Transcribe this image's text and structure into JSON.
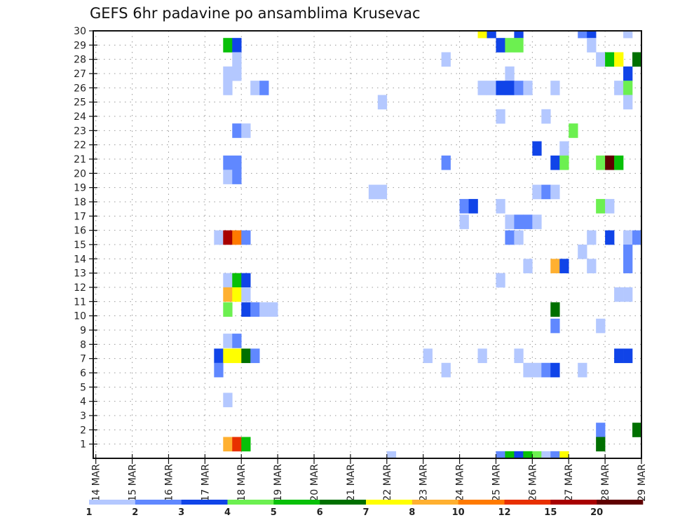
{
  "chart_data": {
    "type": "heatmap",
    "title": "GEFS 6hr padavine po ansamblima Krusevac",
    "xlabel": "",
    "ylabel": "",
    "x_start_day": 14,
    "x_end_day": 29,
    "x_step_hours": 6,
    "ylim": [
      0,
      30
    ],
    "grid": true,
    "ytick_labels": [
      "1",
      "2",
      "3",
      "4",
      "5",
      "6",
      "7",
      "8",
      "9",
      "10",
      "11",
      "12",
      "13",
      "14",
      "15",
      "16",
      "17",
      "18",
      "19",
      "20",
      "21",
      "22",
      "23",
      "24",
      "25",
      "26",
      "27",
      "28",
      "29",
      "30"
    ],
    "xtick_labels": [
      "14 MAR",
      "15 MAR",
      "16 MAR",
      "17 MAR",
      "18 MAR",
      "19 MAR",
      "20 MAR",
      "21 MAR",
      "22 MAR",
      "23 MAR",
      "24 MAR",
      "25 MAR",
      "26 MAR",
      "27 MAR",
      "28 MAR",
      "29 MAR"
    ],
    "colorbar": {
      "position": "bottom",
      "labels": [
        "1",
        "2",
        "3",
        "4",
        "5",
        "6",
        "7",
        "8",
        "10",
        "12",
        "15",
        "20"
      ],
      "colors": [
        "#b4c8ff",
        "#6088ff",
        "#1044e8",
        "#6cf050",
        "#08c008",
        "#007000",
        "#ffff00",
        "#ffb030",
        "#ff7a00",
        "#e83000",
        "#a80000",
        "#600000"
      ]
    },
    "cells_note": "step = 6-hour period index from 14 MAR 00Z (period ends at 14 MAR + step*6h); member = y value on axis; cls = colorbar class index (0 = 1-2 ... 11 = >20)",
    "cells": [
      {
        "step": 43,
        "member": 30,
        "cls": 6
      },
      {
        "step": 44,
        "member": 30,
        "cls": 2
      },
      {
        "step": 47,
        "member": 30,
        "cls": 2
      },
      {
        "step": 54,
        "member": 30,
        "cls": 1
      },
      {
        "step": 55,
        "member": 30,
        "cls": 2
      },
      {
        "step": 59,
        "member": 30,
        "cls": 0
      },
      {
        "step": 15,
        "member": 29,
        "cls": 4
      },
      {
        "step": 16,
        "member": 29,
        "cls": 2
      },
      {
        "step": 45,
        "member": 29,
        "cls": 2
      },
      {
        "step": 46,
        "member": 29,
        "cls": 3
      },
      {
        "step": 47,
        "member": 29,
        "cls": 3
      },
      {
        "step": 55,
        "member": 29,
        "cls": 0
      },
      {
        "step": 16,
        "member": 28,
        "cls": 0
      },
      {
        "step": 39,
        "member": 28,
        "cls": 0
      },
      {
        "step": 56,
        "member": 28,
        "cls": 0
      },
      {
        "step": 57,
        "member": 28,
        "cls": 4
      },
      {
        "step": 58,
        "member": 28,
        "cls": 6
      },
      {
        "step": 60,
        "member": 28,
        "cls": 5
      },
      {
        "step": 15,
        "member": 27,
        "cls": 0
      },
      {
        "step": 16,
        "member": 27,
        "cls": 0
      },
      {
        "step": 46,
        "member": 27,
        "cls": 0
      },
      {
        "step": 59,
        "member": 27,
        "cls": 2
      },
      {
        "step": 15,
        "member": 26,
        "cls": 0
      },
      {
        "step": 18,
        "member": 26,
        "cls": 0
      },
      {
        "step": 19,
        "member": 26,
        "cls": 1
      },
      {
        "step": 43,
        "member": 26,
        "cls": 0
      },
      {
        "step": 44,
        "member": 26,
        "cls": 0
      },
      {
        "step": 45,
        "member": 26,
        "cls": 2
      },
      {
        "step": 46,
        "member": 26,
        "cls": 2
      },
      {
        "step": 47,
        "member": 26,
        "cls": 1
      },
      {
        "step": 48,
        "member": 26,
        "cls": 0
      },
      {
        "step": 51,
        "member": 26,
        "cls": 0
      },
      {
        "step": 58,
        "member": 26,
        "cls": 0
      },
      {
        "step": 59,
        "member": 26,
        "cls": 3
      },
      {
        "step": 32,
        "member": 25,
        "cls": 0
      },
      {
        "step": 59,
        "member": 25,
        "cls": 0
      },
      {
        "step": 45,
        "member": 24,
        "cls": 0
      },
      {
        "step": 50,
        "member": 24,
        "cls": 0
      },
      {
        "step": 16,
        "member": 23,
        "cls": 1
      },
      {
        "step": 17,
        "member": 23,
        "cls": 0
      },
      {
        "step": 53,
        "member": 23,
        "cls": 3
      },
      {
        "step": 49,
        "member": 21.75,
        "cls": 2
      },
      {
        "step": 52,
        "member": 21.75,
        "cls": 0
      },
      {
        "step": 15,
        "member": 20.75,
        "cls": 1
      },
      {
        "step": 16,
        "member": 20.75,
        "cls": 1
      },
      {
        "step": 39,
        "member": 20.75,
        "cls": 1
      },
      {
        "step": 51,
        "member": 20.75,
        "cls": 2
      },
      {
        "step": 52,
        "member": 20.75,
        "cls": 3
      },
      {
        "step": 56,
        "member": 20.75,
        "cls": 3
      },
      {
        "step": 57,
        "member": 20.75,
        "cls": 11
      },
      {
        "step": 58,
        "member": 20.75,
        "cls": 4
      },
      {
        "step": 15,
        "member": 19.75,
        "cls": 0
      },
      {
        "step": 16,
        "member": 19.75,
        "cls": 1
      },
      {
        "step": 31,
        "member": 18.7,
        "cls": 0
      },
      {
        "step": 32,
        "member": 18.7,
        "cls": 0
      },
      {
        "step": 49,
        "member": 18.7,
        "cls": 0
      },
      {
        "step": 50,
        "member": 18.7,
        "cls": 1
      },
      {
        "step": 51,
        "member": 18.7,
        "cls": 0
      },
      {
        "step": 41,
        "member": 17.7,
        "cls": 1
      },
      {
        "step": 42,
        "member": 17.7,
        "cls": 2
      },
      {
        "step": 45,
        "member": 17.7,
        "cls": 0
      },
      {
        "step": 56,
        "member": 17.7,
        "cls": 3
      },
      {
        "step": 57,
        "member": 17.7,
        "cls": 0
      },
      {
        "step": 41,
        "member": 16.6,
        "cls": 0
      },
      {
        "step": 46,
        "member": 16.6,
        "cls": 0
      },
      {
        "step": 47,
        "member": 16.6,
        "cls": 1
      },
      {
        "step": 48,
        "member": 16.6,
        "cls": 1
      },
      {
        "step": 49,
        "member": 16.6,
        "cls": 0
      },
      {
        "step": 14,
        "member": 15.5,
        "cls": 0
      },
      {
        "step": 15,
        "member": 15.5,
        "cls": 10
      },
      {
        "step": 16,
        "member": 15.5,
        "cls": 8
      },
      {
        "step": 17,
        "member": 15.5,
        "cls": 1
      },
      {
        "step": 46,
        "member": 15.5,
        "cls": 1
      },
      {
        "step": 47,
        "member": 15.5,
        "cls": 0
      },
      {
        "step": 55,
        "member": 15.5,
        "cls": 0
      },
      {
        "step": 57,
        "member": 15.5,
        "cls": 2
      },
      {
        "step": 59,
        "member": 15.5,
        "cls": 0
      },
      {
        "step": 60,
        "member": 15.5,
        "cls": 1
      },
      {
        "step": 54,
        "member": 14.5,
        "cls": 0
      },
      {
        "step": 59,
        "member": 14.5,
        "cls": 1
      },
      {
        "step": 48,
        "member": 13.5,
        "cls": 0
      },
      {
        "step": 51,
        "member": 13.5,
        "cls": 7
      },
      {
        "step": 52,
        "member": 13.5,
        "cls": 2
      },
      {
        "step": 55,
        "member": 13.5,
        "cls": 0
      },
      {
        "step": 59,
        "member": 13.5,
        "cls": 1
      },
      {
        "step": 15,
        "member": 12.5,
        "cls": 0
      },
      {
        "step": 16,
        "member": 12.5,
        "cls": 4
      },
      {
        "step": 17,
        "member": 12.5,
        "cls": 2
      },
      {
        "step": 45,
        "member": 12.5,
        "cls": 0
      },
      {
        "step": 15,
        "member": 11.5,
        "cls": 7
      },
      {
        "step": 16,
        "member": 11.5,
        "cls": 6
      },
      {
        "step": 17,
        "member": 11.5,
        "cls": 0
      },
      {
        "step": 58,
        "member": 11.5,
        "cls": 0
      },
      {
        "step": 59,
        "member": 11.5,
        "cls": 0
      },
      {
        "step": 15,
        "member": 10.45,
        "cls": 3
      },
      {
        "step": 17,
        "member": 10.45,
        "cls": 2
      },
      {
        "step": 18,
        "member": 10.45,
        "cls": 1
      },
      {
        "step": 19,
        "member": 10.45,
        "cls": 0
      },
      {
        "step": 20,
        "member": 10.45,
        "cls": 0
      },
      {
        "step": 51,
        "member": 10.45,
        "cls": 5
      },
      {
        "step": 51,
        "member": 9.3,
        "cls": 1
      },
      {
        "step": 56,
        "member": 9.3,
        "cls": 0
      },
      {
        "step": 15,
        "member": 8.25,
        "cls": 0
      },
      {
        "step": 16,
        "member": 8.25,
        "cls": 1
      },
      {
        "step": 14,
        "member": 7.2,
        "cls": 2
      },
      {
        "step": 15,
        "member": 7.2,
        "cls": 6
      },
      {
        "step": 16,
        "member": 7.2,
        "cls": 6
      },
      {
        "step": 17,
        "member": 7.2,
        "cls": 5
      },
      {
        "step": 18,
        "member": 7.2,
        "cls": 1
      },
      {
        "step": 37,
        "member": 7.2,
        "cls": 0
      },
      {
        "step": 43,
        "member": 7.2,
        "cls": 0
      },
      {
        "step": 47,
        "member": 7.2,
        "cls": 0
      },
      {
        "step": 58,
        "member": 7.2,
        "cls": 2
      },
      {
        "step": 59,
        "member": 7.2,
        "cls": 2
      },
      {
        "step": 14,
        "member": 6.2,
        "cls": 1
      },
      {
        "step": 39,
        "member": 6.2,
        "cls": 0
      },
      {
        "step": 48,
        "member": 6.2,
        "cls": 0
      },
      {
        "step": 49,
        "member": 6.2,
        "cls": 0
      },
      {
        "step": 50,
        "member": 6.2,
        "cls": 1
      },
      {
        "step": 51,
        "member": 6.2,
        "cls": 2
      },
      {
        "step": 54,
        "member": 6.2,
        "cls": 0
      },
      {
        "step": 15,
        "member": 4.1,
        "cls": 0
      },
      {
        "step": 56,
        "member": 2,
        "cls": 1
      },
      {
        "step": 60,
        "member": 2,
        "cls": 5
      },
      {
        "step": 15,
        "member": 1,
        "cls": 7
      },
      {
        "step": 16,
        "member": 1,
        "cls": 9
      },
      {
        "step": 17,
        "member": 1,
        "cls": 4
      },
      {
        "step": 56,
        "member": 1,
        "cls": 5
      },
      {
        "step": 33,
        "member": 0,
        "cls": 0
      },
      {
        "step": 45,
        "member": 0,
        "cls": 1
      },
      {
        "step": 46,
        "member": 0,
        "cls": 4
      },
      {
        "step": 47,
        "member": 0,
        "cls": 2
      },
      {
        "step": 48,
        "member": 0,
        "cls": 4
      },
      {
        "step": 49,
        "member": 0,
        "cls": 3
      },
      {
        "step": 50,
        "member": 0,
        "cls": 0
      },
      {
        "step": 51,
        "member": 0,
        "cls": 1
      },
      {
        "step": 52,
        "member": 0,
        "cls": 6
      }
    ]
  }
}
